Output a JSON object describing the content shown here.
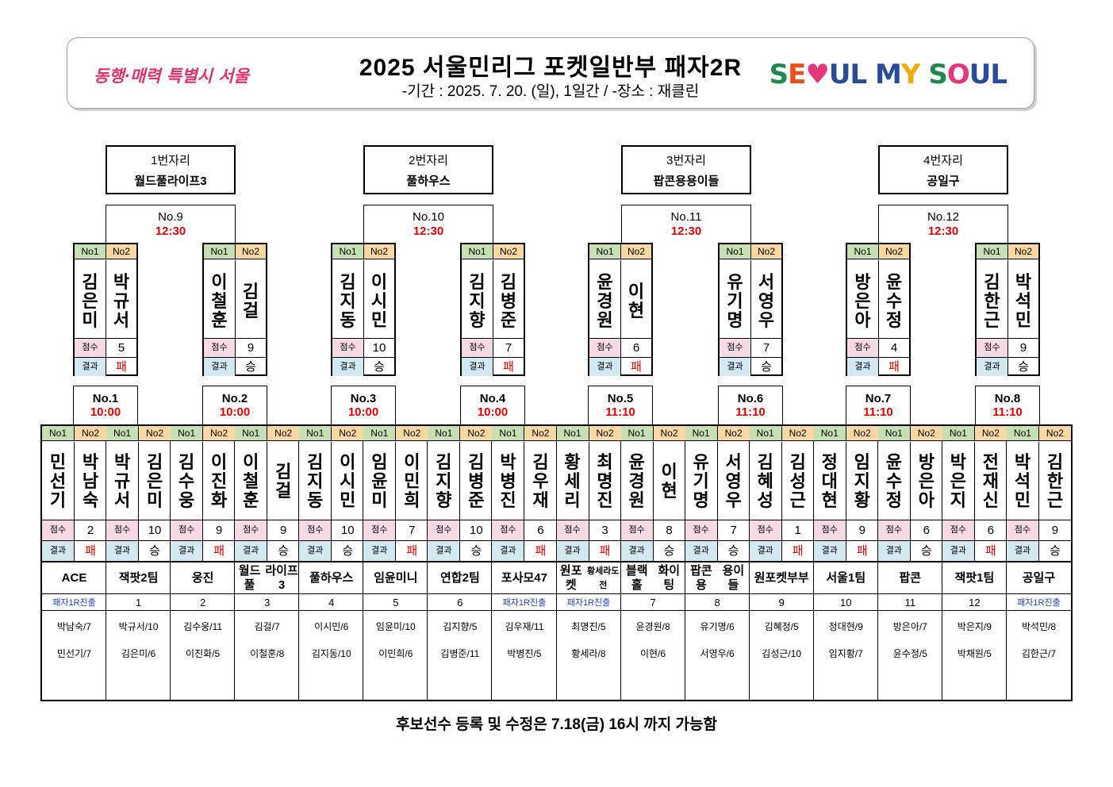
{
  "header": {
    "title": "2025 서울민리그 포켓일반부 패자2R",
    "subtitle": "-기간 : 2025. 7. 20. (일), 1일간 / -장소 : 재클린",
    "logo_left": "동행·매력 특별시 서울",
    "logo_right": "SEOUL MY SOUL"
  },
  "labels": {
    "no1": "No1",
    "no2": "No2",
    "score": "점수",
    "result": "결과"
  },
  "seats": [
    {
      "seat": "1번자리",
      "team": "월드풀라이프3"
    },
    {
      "seat": "2번자리",
      "team": "풀하우스"
    },
    {
      "seat": "3번자리",
      "team": "팝콘용용이들"
    },
    {
      "seat": "4번자리",
      "team": "공일구"
    }
  ],
  "top_matches": [
    {
      "no": "No.9",
      "time": "12:30"
    },
    {
      "no": "No.10",
      "time": "12:30"
    },
    {
      "no": "No.11",
      "time": "12:30"
    },
    {
      "no": "No.12",
      "time": "12:30"
    }
  ],
  "top_cards": [
    {
      "p1": "김은미",
      "p2": "박규서",
      "score": "5",
      "result": "패"
    },
    {
      "p1": "이철훈",
      "p2": "김걸",
      "score": "9",
      "result": "승"
    },
    {
      "p1": "김지동",
      "p2": "이시민",
      "score": "10",
      "result": "승"
    },
    {
      "p1": "김지향",
      "p2": "김병준",
      "score": "7",
      "result": "패"
    },
    {
      "p1": "윤경원",
      "p2": "이현",
      "score": "6",
      "result": "패"
    },
    {
      "p1": "유기명",
      "p2": "서영우",
      "score": "7",
      "result": "승"
    },
    {
      "p1": "방은아",
      "p2": "윤수정",
      "score": "4",
      "result": "패"
    },
    {
      "p1": "김한근",
      "p2": "박석민",
      "score": "9",
      "result": "승"
    }
  ],
  "r1_matches": [
    {
      "no": "No.1",
      "time": "10:00"
    },
    {
      "no": "No.2",
      "time": "10:00"
    },
    {
      "no": "No.3",
      "time": "10:00"
    },
    {
      "no": "No.4",
      "time": "10:00"
    },
    {
      "no": "No.5",
      "time": "11:10"
    },
    {
      "no": "No.6",
      "time": "11:10"
    },
    {
      "no": "No.7",
      "time": "11:10"
    },
    {
      "no": "No.8",
      "time": "11:10"
    }
  ],
  "teams": [
    {
      "p1": "민선기",
      "p2": "박남숙",
      "score": "2",
      "result": "패",
      "team": "ACE",
      "num": "패자1R진출",
      "s1": "박남숙/7",
      "s2": "민선기/7"
    },
    {
      "p1": "박규서",
      "p2": "김은미",
      "score": "10",
      "result": "승",
      "team": "잭팟2팀",
      "num": "1",
      "s1": "박규서/10",
      "s2": "김은미/6"
    },
    {
      "p1": "김수웅",
      "p2": "이진화",
      "score": "9",
      "result": "패",
      "team": "웅진",
      "num": "2",
      "s1": "김수웅/11",
      "s2": "이진화/5"
    },
    {
      "p1": "이철훈",
      "p2": "김걸",
      "score": "9",
      "result": "승",
      "team": "월드풀\n라이프3",
      "num": "3",
      "s1": "김걸/7",
      "s2": "이철훈/8"
    },
    {
      "p1": "김지동",
      "p2": "이시민",
      "score": "10",
      "result": "승",
      "team": "풀하우스",
      "num": "4",
      "s1": "이시민/6",
      "s2": "김지동/10"
    },
    {
      "p1": "임윤미",
      "p2": "이민희",
      "score": "7",
      "result": "패",
      "team": "임윤미니",
      "num": "5",
      "s1": "임윤미/10",
      "s2": "이민희/6"
    },
    {
      "p1": "김지향",
      "p2": "김병준",
      "score": "10",
      "result": "승",
      "team": "연합2팀",
      "num": "6",
      "s1": "김지향/5",
      "s2": "김병준/11"
    },
    {
      "p1": "박병진",
      "p2": "김우재",
      "score": "6",
      "result": "패",
      "team": "포사모\n47",
      "num": "패자1R진출",
      "s1": "김우재/11",
      "s2": "박병진/5"
    },
    {
      "p1": "황세리",
      "p2": "최명진",
      "score": "3",
      "result": "패",
      "team": "원포켓\n황세라도전",
      "num": "패자1R진출",
      "s1": "최명진/5",
      "s2": "황세라/8"
    },
    {
      "p1": "윤경원",
      "p2": "이현",
      "score": "8",
      "result": "승",
      "team": "블랙홀\n화이팅",
      "num": "7",
      "s1": "윤경원/8",
      "s2": "이현/6"
    },
    {
      "p1": "유기명",
      "p2": "서영우",
      "score": "7",
      "result": "승",
      "team": "팝콘용\n용이들",
      "num": "8",
      "s1": "유기명/6",
      "s2": "서영우/6"
    },
    {
      "p1": "김혜성",
      "p2": "김성근",
      "score": "1",
      "result": "패",
      "team": "원포켓\n부부",
      "num": "9",
      "s1": "김혜정/5",
      "s2": "김성근/10"
    },
    {
      "p1": "정대현",
      "p2": "임지황",
      "score": "9",
      "result": "패",
      "team": "서울1팀",
      "num": "10",
      "s1": "정대현/9",
      "s2": "임지황/7"
    },
    {
      "p1": "윤수정",
      "p2": "방은아",
      "score": "6",
      "result": "승",
      "team": "팝콘",
      "num": "11",
      "s1": "방은아/7",
      "s2": "윤수정/5"
    },
    {
      "p1": "박은지",
      "p2": "전재신",
      "score": "6",
      "result": "패",
      "team": "잭팟1팀",
      "num": "12",
      "s1": "박은지/9",
      "s2": "박채원/5"
    },
    {
      "p1": "박석민",
      "p2": "김한근",
      "score": "9",
      "result": "승",
      "team": "공일구",
      "num": "패자1R진출",
      "s1": "박석민/8",
      "s2": "김한근/7"
    }
  ],
  "footer": "후보선수 등록 및 수정은 7.18(금) 16시 까지 가능함",
  "colors": {
    "win_loss_red": "#e00000",
    "time_red": "#e00000",
    "no1_green": "#c6e0b4",
    "no2_orange": "#fbd8a2",
    "score_pink": "#f6d9e4",
    "result_blue": "#d2e9f2",
    "advance_blue": "#1f3fbf"
  }
}
